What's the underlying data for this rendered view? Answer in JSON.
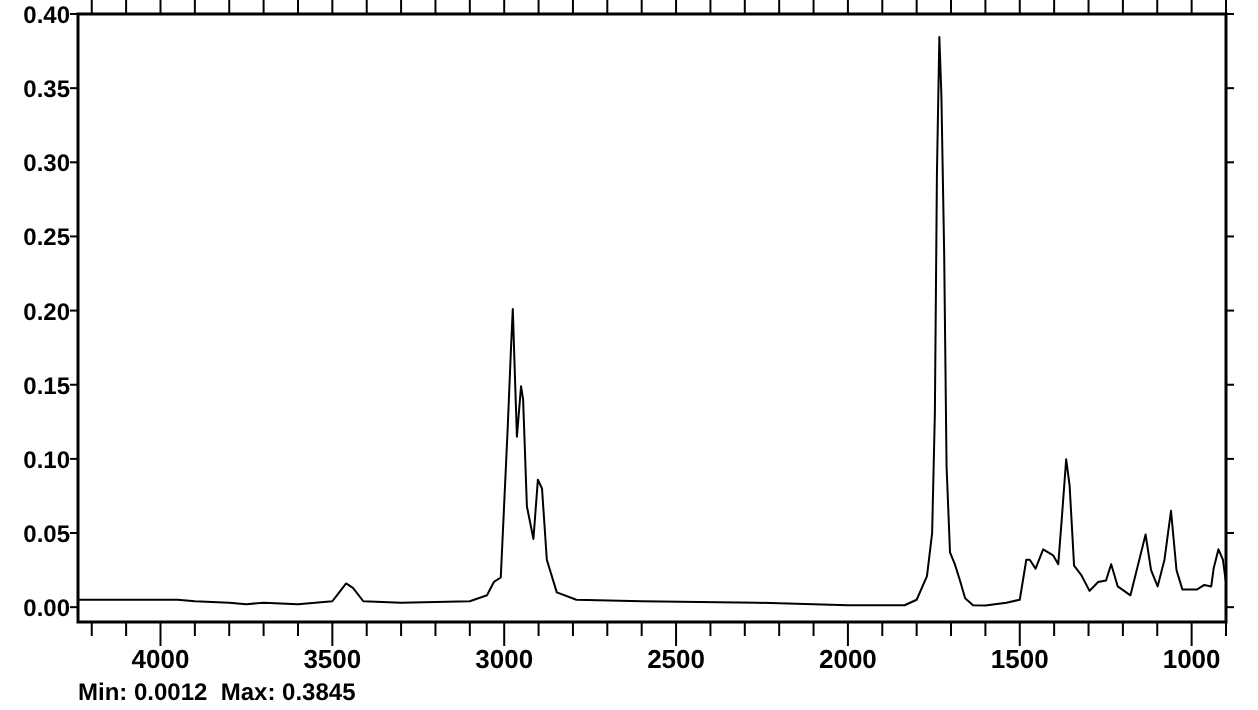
{
  "chart_data": {
    "type": "line",
    "xlim": [
      4240,
      900
    ],
    "ylim": [
      -0.01,
      0.4
    ],
    "xticks": [
      {
        "value": 4200,
        "label": null
      },
      {
        "value": 4100,
        "label": null
      },
      4000,
      {
        "value": 3900,
        "label": null
      },
      {
        "value": 3800,
        "label": null
      },
      {
        "value": 3700,
        "label": null
      },
      {
        "value": 3600,
        "label": null
      },
      3500,
      {
        "value": 3400,
        "label": null
      },
      {
        "value": 3300,
        "label": null
      },
      {
        "value": 3200,
        "label": null
      },
      {
        "value": 3100,
        "label": null
      },
      3000,
      {
        "value": 2900,
        "label": null
      },
      {
        "value": 2800,
        "label": null
      },
      {
        "value": 2700,
        "label": null
      },
      {
        "value": 2600,
        "label": null
      },
      2500,
      {
        "value": 2400,
        "label": null
      },
      {
        "value": 2300,
        "label": null
      },
      {
        "value": 2200,
        "label": null
      },
      {
        "value": 2100,
        "label": null
      },
      2000,
      {
        "value": 1900,
        "label": null
      },
      {
        "value": 1800,
        "label": null
      },
      {
        "value": 1700,
        "label": null
      },
      {
        "value": 1600,
        "label": null
      },
      1500,
      {
        "value": 1400,
        "label": null
      },
      {
        "value": 1300,
        "label": null
      },
      {
        "value": 1200,
        "label": null
      },
      {
        "value": 1100,
        "label": null
      },
      1000,
      {
        "value": 900,
        "label": null
      }
    ],
    "yticks": [
      {
        "value": 0,
        "label": "0.00"
      },
      {
        "value": 0.05,
        "label": "0.05"
      },
      {
        "value": 0.1,
        "label": "0.10"
      },
      {
        "value": 0.15,
        "label": "0.15"
      },
      {
        "value": 0.2,
        "label": "0.20"
      },
      {
        "value": 0.25,
        "label": "0.25"
      },
      {
        "value": 0.3,
        "label": "0.30"
      },
      {
        "value": 0.35,
        "label": "0.35"
      },
      {
        "value": 0.4,
        "label": "0.40"
      }
    ],
    "grid": false,
    "marker": "none",
    "line_style": "solid",
    "annotations": [
      "Min: 0.0012  Max: 0.3845"
    ],
    "series": [
      {
        "color": "#000000",
        "x": [
          4240,
          3950,
          3900,
          3800,
          3750,
          3700,
          3600,
          3500,
          3480,
          3460,
          3440,
          3410,
          3300,
          3100,
          3050,
          3030,
          3010,
          2990,
          2980,
          2975,
          2968,
          2963,
          2951,
          2945,
          2934,
          2915,
          2902,
          2890,
          2876,
          2847,
          2790,
          2600,
          2263,
          2000,
          1835,
          1800,
          1770,
          1755,
          1747,
          1741,
          1734,
          1728,
          1720,
          1713,
          1703,
          1689,
          1674,
          1659,
          1636,
          1600,
          1539,
          1500,
          1481,
          1471,
          1454,
          1432,
          1403,
          1388,
          1378,
          1365,
          1355,
          1342,
          1322,
          1297,
          1272,
          1249,
          1234,
          1215,
          1178,
          1149,
          1134,
          1118,
          1099,
          1079,
          1060,
          1044,
          1027,
          984,
          963,
          943,
          936,
          922,
          909,
          901
        ],
        "values": [
          0.005,
          0.005,
          0.004,
          0.003,
          0.002,
          0.003,
          0.002,
          0.004,
          0.01,
          0.016,
          0.013,
          0.004,
          0.003,
          0.004,
          0.008,
          0.017,
          0.02,
          0.12,
          0.176,
          0.201,
          0.15,
          0.115,
          0.149,
          0.14,
          0.068,
          0.046,
          0.086,
          0.08,
          0.032,
          0.01,
          0.005,
          0.004,
          0.003,
          0.0013,
          0.0013,
          0.005,
          0.021,
          0.05,
          0.131,
          0.293,
          0.3845,
          0.3446,
          0.239,
          0.095,
          0.037,
          0.029,
          0.018,
          0.006,
          0.0013,
          0.0012,
          0.003,
          0.005,
          0.032,
          0.032,
          0.026,
          0.039,
          0.035,
          0.029,
          0.059,
          0.0997,
          0.082,
          0.028,
          0.022,
          0.011,
          0.017,
          0.018,
          0.029,
          0.014,
          0.008,
          0.035,
          0.049,
          0.025,
          0.014,
          0.032,
          0.065,
          0.025,
          0.012,
          0.012,
          0.015,
          0.014,
          0.026,
          0.039,
          0.032,
          0.018
        ]
      }
    ]
  }
}
